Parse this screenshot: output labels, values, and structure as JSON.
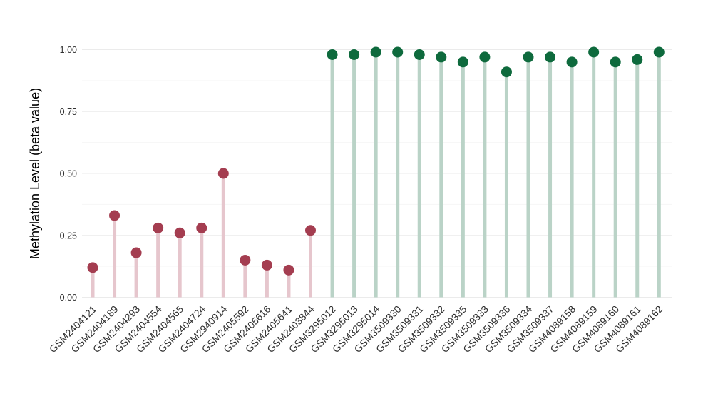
{
  "chart_data": {
    "type": "scatter",
    "variant": "lollipop-stem",
    "title": "",
    "xlabel": "",
    "ylabel": "Methylation Level (beta value)",
    "ylim": [
      0,
      1
    ],
    "ytick_values": [
      0,
      0.25,
      0.5,
      0.75,
      1.0
    ],
    "ytick_labels": [
      "0.00",
      "0.25",
      "0.50",
      "0.75",
      "1.00"
    ],
    "minor_grid_values": [
      0.125,
      0.375,
      0.625,
      0.875
    ],
    "grid": "horizontal major and minor, no axis lines, no tick marks",
    "legend_position": "none",
    "group_styles": {
      "low": {
        "dot_color": "#A43D50",
        "stem_color": "#E6C6CD"
      },
      "high": {
        "dot_color": "#0E6A3D",
        "stem_color": "#BAD3C7"
      }
    },
    "colors": {
      "grid_major": "#EBEBEB",
      "grid_minor": "#F6F6F6",
      "tick_text": "#303030",
      "axis_title_text": "#000000",
      "background": "#FFFFFF"
    },
    "points": [
      {
        "label": "GSM2404121",
        "value": 0.12,
        "group": "low"
      },
      {
        "label": "GSM2404189",
        "value": 0.33,
        "group": "low"
      },
      {
        "label": "GSM2404293",
        "value": 0.18,
        "group": "low"
      },
      {
        "label": "GSM2404554",
        "value": 0.28,
        "group": "low"
      },
      {
        "label": "GSM2404565",
        "value": 0.26,
        "group": "low"
      },
      {
        "label": "GSM2404724",
        "value": 0.28,
        "group": "low"
      },
      {
        "label": "GSM2940914",
        "value": 0.5,
        "group": "low"
      },
      {
        "label": "GSM2405592",
        "value": 0.15,
        "group": "low"
      },
      {
        "label": "GSM2405616",
        "value": 0.13,
        "group": "low"
      },
      {
        "label": "GSM2405641",
        "value": 0.11,
        "group": "low"
      },
      {
        "label": "GSM2403844",
        "value": 0.27,
        "group": "low"
      },
      {
        "label": "GSM3295012",
        "value": 0.98,
        "group": "high"
      },
      {
        "label": "GSM3295013",
        "value": 0.98,
        "group": "high"
      },
      {
        "label": "GSM3295014",
        "value": 0.99,
        "group": "high"
      },
      {
        "label": "GSM3509330",
        "value": 0.99,
        "group": "high"
      },
      {
        "label": "GSM3509331",
        "value": 0.98,
        "group": "high"
      },
      {
        "label": "GSM3509332",
        "value": 0.97,
        "group": "high"
      },
      {
        "label": "GSM3509335",
        "value": 0.95,
        "group": "high"
      },
      {
        "label": "GSM3509333",
        "value": 0.97,
        "group": "high"
      },
      {
        "label": "GSM3509336",
        "value": 0.91,
        "group": "high"
      },
      {
        "label": "GSM3509334",
        "value": 0.97,
        "group": "high"
      },
      {
        "label": "GSM3509337",
        "value": 0.97,
        "group": "high"
      },
      {
        "label": "GSM4089158",
        "value": 0.95,
        "group": "high"
      },
      {
        "label": "GSM4089159",
        "value": 0.99,
        "group": "high"
      },
      {
        "label": "GSM4089160",
        "value": 0.95,
        "group": "high"
      },
      {
        "label": "GSM4089161",
        "value": 0.96,
        "group": "high"
      },
      {
        "label": "GSM4089162",
        "value": 0.99,
        "group": "high"
      }
    ]
  }
}
